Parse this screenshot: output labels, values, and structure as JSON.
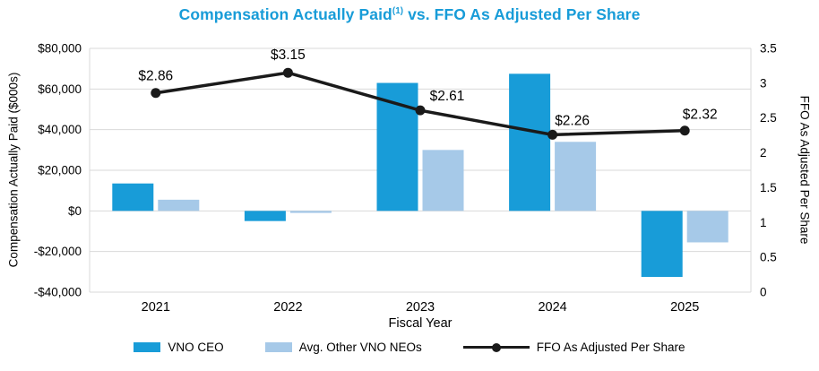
{
  "chart": {
    "title_main": "Compensation Actually Paid",
    "title_sup": "(1)",
    "title_rest": " vs. FFO As Adjusted Per Share",
    "title_color": "#189CD8",
    "grid_color": "#D9D9D9",
    "text_color": "#000000"
  },
  "chart_data": {
    "type": "combo-bar-line",
    "title": "Compensation Actually Paid(1) vs. FFO As Adjusted Per Share",
    "categories": [
      "2021",
      "2022",
      "2023",
      "2024",
      "2025"
    ],
    "xlabel": "Fiscal Year",
    "grid": true,
    "legend_position": "bottom",
    "left_axis": {
      "label": "Compensation Actually Paid ($000s)",
      "min": -40000,
      "max": 80000,
      "ticks": [
        80000,
        60000,
        40000,
        20000,
        0,
        -20000,
        -40000
      ]
    },
    "right_axis": {
      "label": "FFO As Adjusted Per Share",
      "min": 0,
      "max": 3.5,
      "ticks": [
        3.5,
        3,
        2.5,
        2,
        1.5,
        1,
        0.5,
        0
      ]
    },
    "series": [
      {
        "name": "VNO CEO",
        "type": "bar",
        "axis": "left",
        "color": "#189CD8",
        "values": [
          13500,
          -5000,
          63000,
          67500,
          -32500
        ]
      },
      {
        "name": "Avg. Other VNO NEOs",
        "type": "bar",
        "axis": "left",
        "color": "#A6C9E8",
        "values": [
          5500,
          -1000,
          30000,
          34000,
          -15500
        ]
      },
      {
        "name": "FFO As Adjusted Per Share",
        "type": "line",
        "axis": "right",
        "color": "#1A1A1A",
        "values": [
          2.86,
          3.15,
          2.61,
          2.26,
          2.32
        ],
        "labels": [
          "$2.86",
          "$3.15",
          "$2.61",
          "$2.26",
          "$2.32"
        ]
      }
    ]
  }
}
